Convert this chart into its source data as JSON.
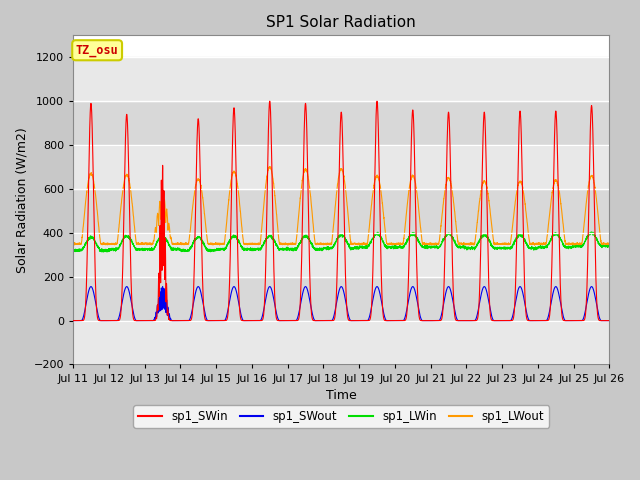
{
  "title": "SP1 Solar Radiation",
  "xlabel": "Time",
  "ylabel": "Solar Radiation (W/m2)",
  "ylim": [
    -200,
    1300
  ],
  "xlim": [
    0,
    15
  ],
  "x_tick_labels": [
    "Jul 11",
    "Jul 12",
    "Jul 13",
    "Jul 14",
    "Jul 15",
    "Jul 16",
    "Jul 17",
    "Jul 18",
    "Jul 19",
    "Jul 20",
    "Jul 21",
    "Jul 22",
    "Jul 23",
    "Jul 24",
    "Jul 25",
    "Jul 26"
  ],
  "yticks": [
    -200,
    0,
    200,
    400,
    600,
    800,
    1000,
    1200
  ],
  "bg_color": "#c8c8c8",
  "plot_bg_color": "#ffffff",
  "grid_band_colors": [
    "#e8e8e8",
    "#d8d8d8"
  ],
  "legend_items": [
    "sp1_SWin",
    "sp1_SWout",
    "sp1_LWin",
    "sp1_LWout"
  ],
  "legend_colors": [
    "#ff0000",
    "#0000ee",
    "#00dd00",
    "#ff9900"
  ],
  "annotation_text": "TZ_osu",
  "annotation_color": "#cc0000",
  "annotation_bg": "#ffff99",
  "annotation_border": "#cccc00",
  "sw_peaks": [
    990,
    940,
    710,
    920,
    970,
    1000,
    990,
    950,
    1000,
    960,
    950,
    950,
    955,
    955,
    980
  ],
  "lw_out_peaks": [
    670,
    665,
    565,
    645,
    680,
    700,
    690,
    690,
    660,
    660,
    650,
    635,
    635,
    640,
    660
  ],
  "lw_in_base": [
    320,
    325,
    325,
    320,
    325,
    325,
    325,
    330,
    335,
    335,
    335,
    330,
    330,
    335,
    340
  ],
  "sw_out_flat": 155,
  "sunrise": 5.5,
  "sunset": 18.5
}
